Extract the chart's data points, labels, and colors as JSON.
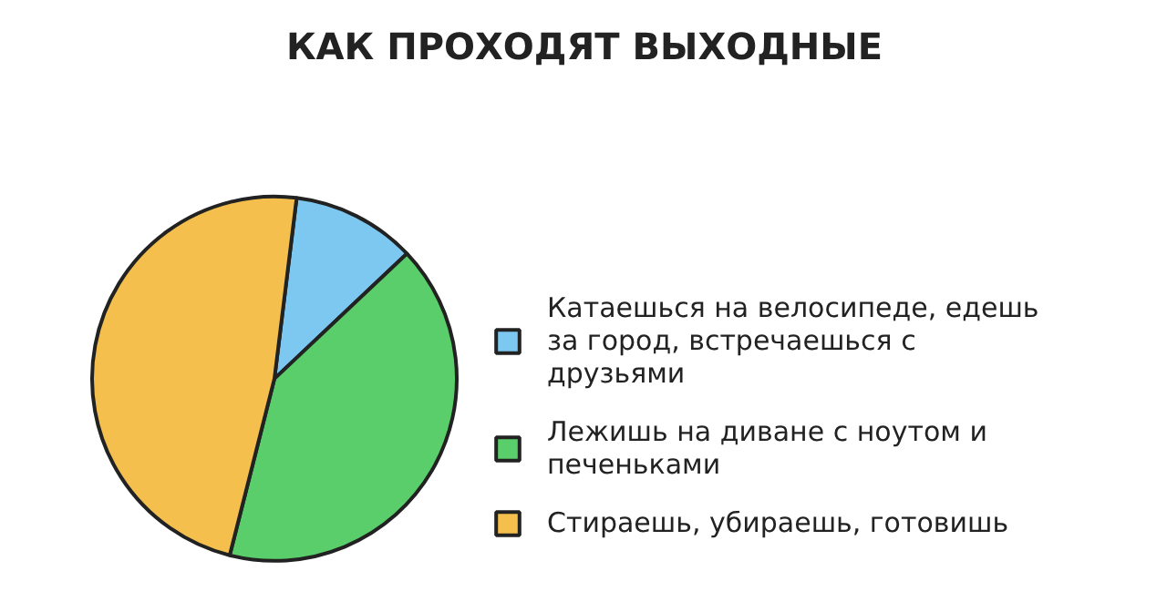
{
  "chart_data": {
    "type": "pie",
    "title": "КАК ПРОХОДЯТ ВЫХОДНЫЕ",
    "categories": [
      "Катаешься на велосипеде, едешь за город, встречаешься с друзьями",
      "Лежишь на диване с ноутом и печеньками",
      "Стираешь, убираешь, готовишь"
    ],
    "values": [
      11,
      41,
      48
    ],
    "colors": [
      "#7cc8f0",
      "#5ace6a",
      "#f4bf4c"
    ],
    "legend": "right"
  }
}
